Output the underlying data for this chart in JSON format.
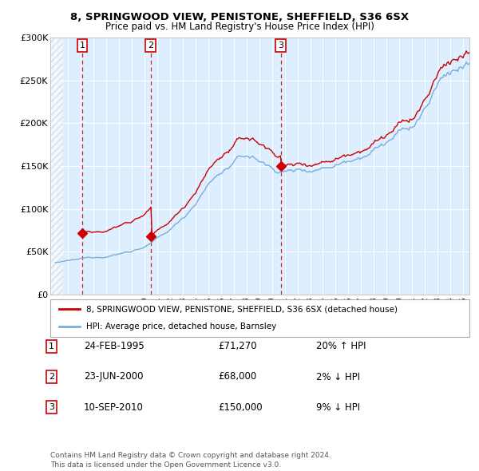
{
  "title_line1": "8, SPRINGWOOD VIEW, PENISTONE, SHEFFIELD, S36 6SX",
  "title_line2": "Price paid vs. HM Land Registry's House Price Index (HPI)",
  "purchases": [
    {
      "label": "1",
      "date": "24-FEB-1995",
      "price": 71270,
      "year": 1995.12,
      "hpi_pct": "20% ↑ HPI"
    },
    {
      "label": "2",
      "date": "23-JUN-2000",
      "price": 68000,
      "year": 2000.47,
      "hpi_pct": "2% ↓ HPI"
    },
    {
      "label": "3",
      "date": "10-SEP-2010",
      "price": 150000,
      "year": 2010.69,
      "hpi_pct": "9% ↓ HPI"
    }
  ],
  "legend_line1": "8, SPRINGWOOD VIEW, PENISTONE, SHEFFIELD, S36 6SX (detached house)",
  "legend_line2": "HPI: Average price, detached house, Barnsley",
  "footnote": "Contains HM Land Registry data © Crown copyright and database right 2024.\nThis data is licensed under the Open Government Licence v3.0.",
  "price_color": "#cc0000",
  "hpi_color": "#7aaddb",
  "dashed_line_color": "#cc0000",
  "bg_color": "#ddeeff",
  "ylim": [
    0,
    300000
  ],
  "xmin": 1993,
  "xmax": 2025.5
}
